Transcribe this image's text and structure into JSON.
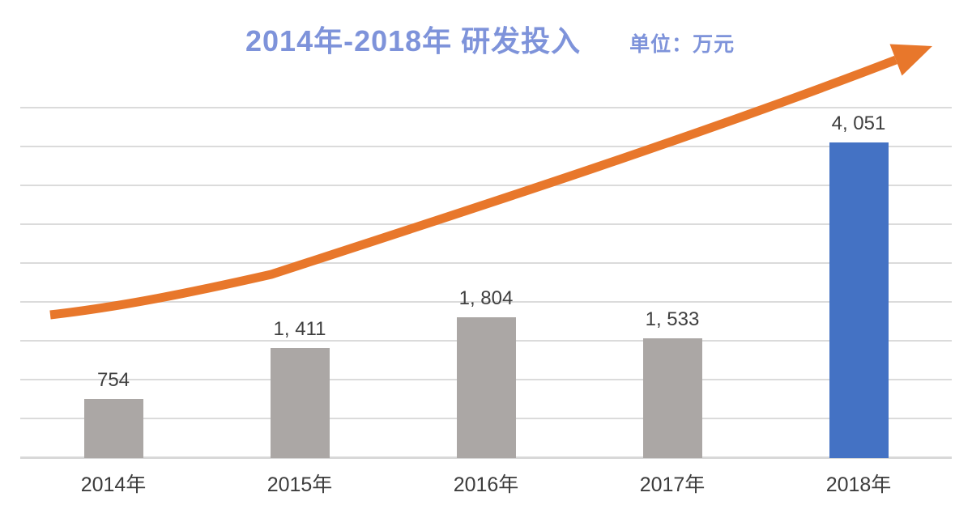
{
  "header": {
    "title": "2014年-2018年  研发投入",
    "unit_label": "单位：万元"
  },
  "chart_data": {
    "type": "bar",
    "title": "2014年-2018年 研发投入",
    "subtitle": "单位：万元",
    "categories": [
      "2014年",
      "2015年",
      "2016年",
      "2017年",
      "2018年"
    ],
    "values": [
      754,
      1411,
      1804,
      1533,
      4051
    ],
    "value_labels": [
      "754",
      "1, 411",
      "1, 804",
      "1, 533",
      "4, 051"
    ],
    "xlabel": "",
    "ylabel": "",
    "ylim": [
      0,
      4500
    ],
    "gridline_step": 500,
    "grid": true,
    "legend_position": "none",
    "bar_colors": [
      "#ABA7A5",
      "#ABA7A5",
      "#ABA7A5",
      "#ABA7A5",
      "#4472C4"
    ],
    "annotation": {
      "type": "trend-arrow",
      "shape": "upward curved arrow from lower-left to upper-right",
      "color": "#E8772B"
    },
    "colors": {
      "title": "#7E93DA",
      "unit": "#7E93DA",
      "value_label": "#3F3F3F",
      "axis_label": "#3C3C3C",
      "gridline": "#DBDBDB",
      "axis_line": "#D8D8D8",
      "background": "#FFFFFF"
    }
  }
}
